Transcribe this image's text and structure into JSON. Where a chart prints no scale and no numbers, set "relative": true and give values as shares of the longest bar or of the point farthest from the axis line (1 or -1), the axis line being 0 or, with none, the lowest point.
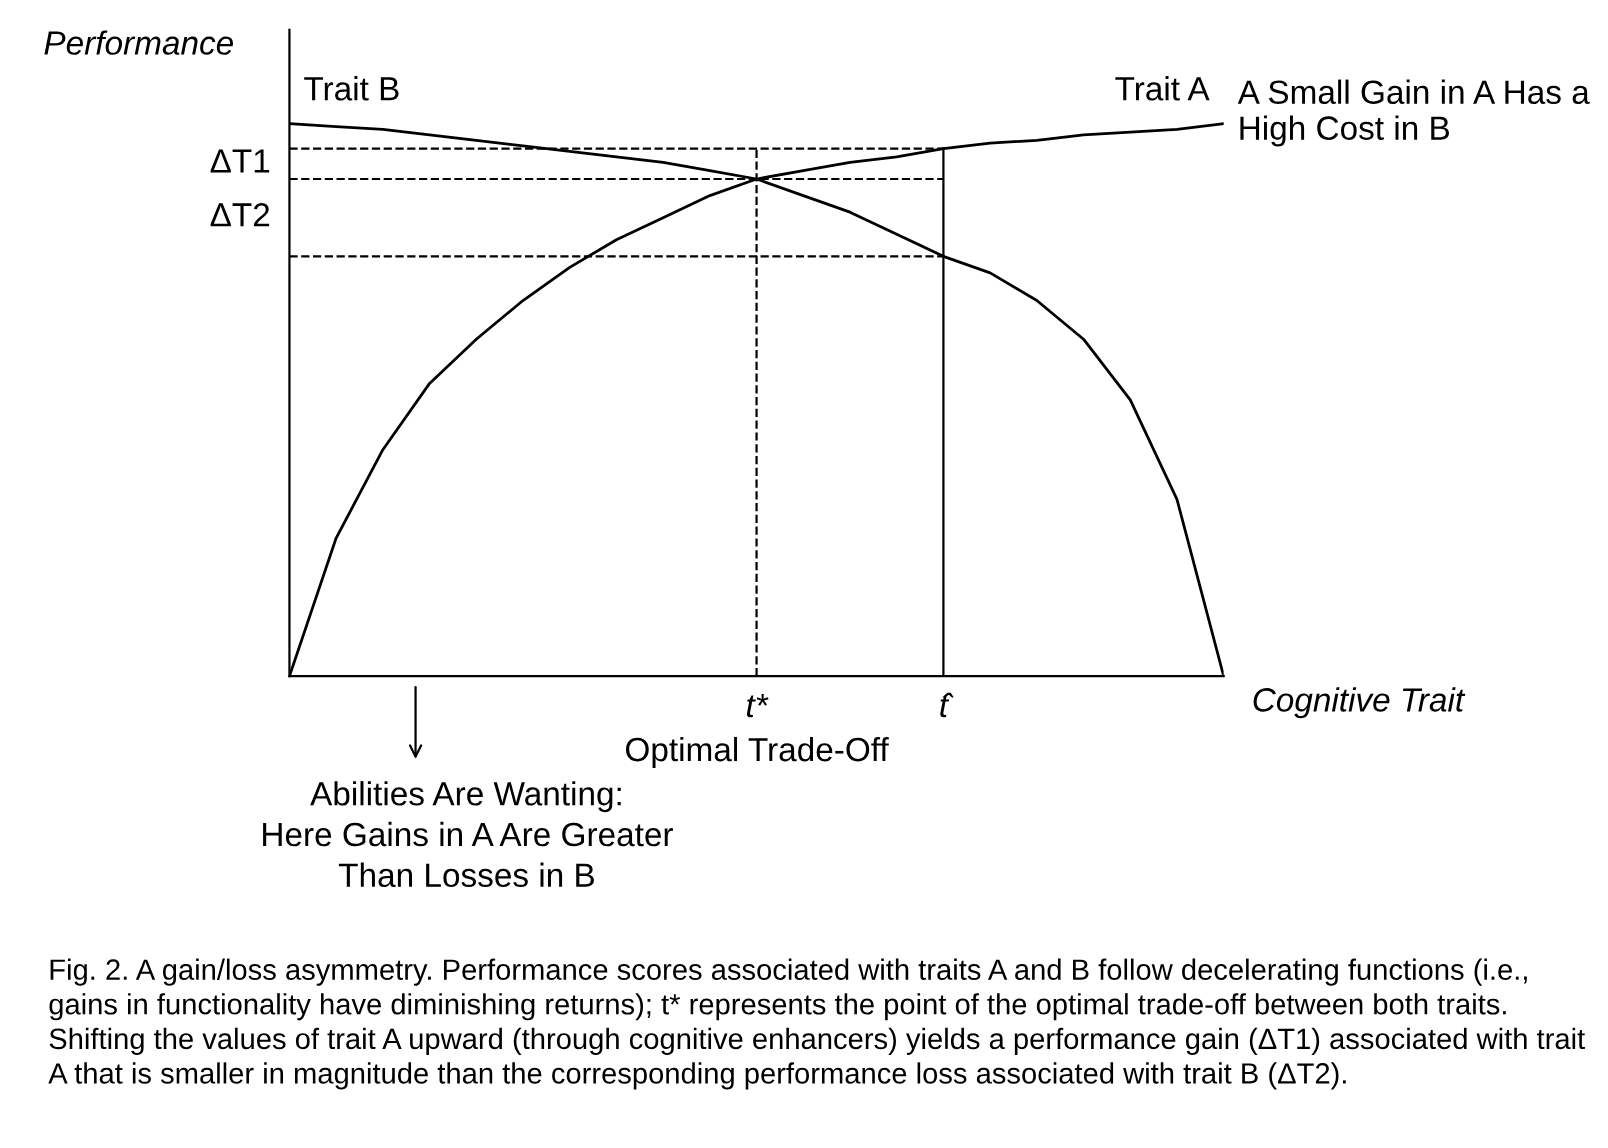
{
  "chart_data": {
    "type": "line",
    "relative": true,
    "xlabel": "Cognitive Trait",
    "ylabel": "Performance",
    "categories": [
      null,
      null,
      null,
      null,
      null,
      null,
      null,
      null,
      null,
      null,
      "t*",
      null,
      null,
      null,
      "t̂",
      null,
      null,
      null,
      null,
      null,
      null
    ],
    "series": [
      {
        "name": "Trait A",
        "color": "#000000",
        "values": [
          0,
          0.25,
          0.41,
          0.53,
          0.61,
          0.68,
          0.74,
          0.79,
          0.83,
          0.87,
          0.9,
          0.915,
          0.93,
          0.94,
          0.955,
          0.965,
          0.97,
          0.98,
          0.985,
          0.99,
          1
        ]
      },
      {
        "name": "Trait B",
        "color": "#000000",
        "values": [
          1,
          0.995,
          0.99,
          0.98,
          0.97,
          0.96,
          0.95,
          0.94,
          0.93,
          0.915,
          0.9,
          0.87,
          0.84,
          0.8,
          0.76,
          0.73,
          0.68,
          0.61,
          0.5,
          0.32,
          0
        ]
      }
    ],
    "ref_lines": [
      {
        "axis": "y",
        "value": 0.955,
        "label": "ΔT1",
        "line_style": "dashed"
      },
      {
        "axis": "y",
        "value": 0.9,
        "label": "ΔT2",
        "line_style": "dashed"
      },
      {
        "axis": "y",
        "value": 0.76,
        "line_style": "dashed"
      },
      {
        "axis": "x",
        "value": "t*",
        "line_style": "dashed"
      },
      {
        "axis": "x",
        "value": "t̂",
        "line_style": "solid"
      }
    ],
    "marker": "none",
    "line_style": "solid",
    "grid": false,
    "legend": false,
    "annotations": [
      "A Small Gain in A Has a High Cost in B",
      "Optimal Trade-Off",
      "Abilities Are Wanting:\nHere Gains in A Are Greater\nThan Losses in B",
      "Fig. 2. A gain/loss asymmetry. Performance scores associated with traits A and B follow decelerating functions (i.e., gains in functionality have diminishing returns); t* represents the point of the optimal trade-off between both traits. Shifting the values of trait A upward (through cognitive enhancers) yields a performance gain (ΔT1) associated with trait A that is smaller in magnitude than the corresponding performance loss associated with trait B (ΔT2)."
    ]
  }
}
